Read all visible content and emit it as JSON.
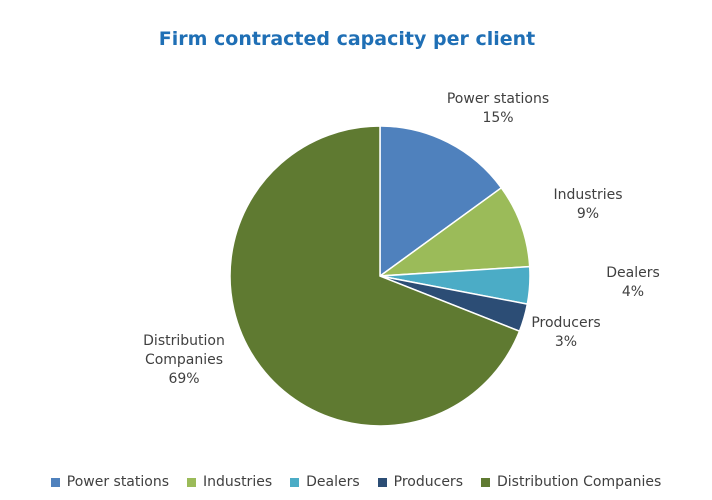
{
  "chart_data": {
    "type": "pie",
    "title": "Firm contracted capacity per client",
    "slices": [
      {
        "name": "Power stations",
        "value": 15,
        "label_lines": [
          "Power stations",
          "15%"
        ],
        "color": "#4f81bd"
      },
      {
        "name": "Industries",
        "value": 9,
        "label_lines": [
          "Industries",
          "9%"
        ],
        "color": "#9bbb59"
      },
      {
        "name": "Dealers",
        "value": 4,
        "label_lines": [
          "Dealers",
          "4%"
        ],
        "color": "#4bacc6"
      },
      {
        "name": "Producers",
        "value": 3,
        "label_lines": [
          "Producers",
          "3%"
        ],
        "color": "#2c4d75"
      },
      {
        "name": "Distribution Companies",
        "value": 69,
        "label_lines": [
          "Distribution",
          "Companies",
          "69%"
        ],
        "color": "#5f7a31"
      }
    ],
    "legend_position": "bottom"
  }
}
